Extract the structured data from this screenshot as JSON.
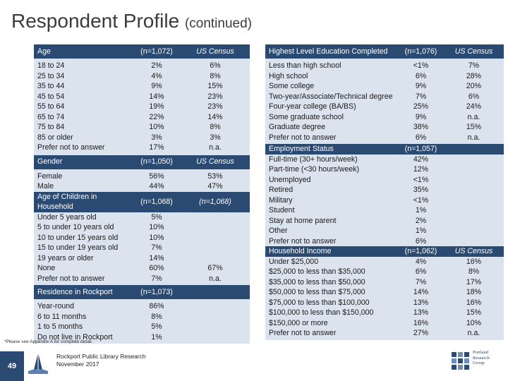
{
  "title": {
    "main": "Respondent Profile",
    "sub": "(continued)"
  },
  "left": {
    "age": {
      "header": "Age",
      "col2": "(n=1,072)",
      "col3": "US Census",
      "rows": [
        [
          "18 to 24",
          "2%",
          "6%"
        ],
        [
          "25 to 34",
          "4%",
          "8%"
        ],
        [
          "35 to 44",
          "9%",
          "15%"
        ],
        [
          "45 to 54",
          "14%",
          "23%"
        ],
        [
          "55 to 64",
          "19%",
          "23%"
        ],
        [
          "65 to 74",
          "22%",
          "14%"
        ],
        [
          "75 to 84",
          "10%",
          "8%"
        ],
        [
          "85 or older",
          "3%",
          "3%"
        ],
        [
          "Prefer not to answer",
          "17%",
          "n.a."
        ]
      ]
    },
    "gender": {
      "header": "Gender",
      "col2": "(n=1,050)",
      "col3": "US Census",
      "rows": [
        [
          "Female",
          "56%",
          "53%"
        ],
        [
          "Male",
          "44%",
          "47%"
        ]
      ]
    },
    "children": {
      "label_1": "Age of Children in",
      "label_2": "Household",
      "col2": "(n=1,068)",
      "col3": "(n=1,068)",
      "rows": [
        [
          "Under 5 years old",
          "5%",
          ""
        ],
        [
          "5 to under 10 years old",
          "10%",
          ""
        ],
        [
          "10 to under 15 years old",
          "10%",
          ""
        ],
        [
          "15 to under 19 years old",
          "7%",
          ""
        ],
        [
          "19 years or older",
          "14%",
          ""
        ],
        [
          "None",
          "60%",
          "67%"
        ],
        [
          "Prefer not to answer",
          "7%",
          "n.a."
        ]
      ]
    },
    "residence": {
      "header": "Residence in Rockport",
      "col2": "(n=1,073)",
      "col3": "",
      "rows": [
        [
          "Year-round",
          "86%",
          ""
        ],
        [
          "6 to 11 months",
          "8%",
          ""
        ],
        [
          "1 to 5 months",
          "5%",
          ""
        ],
        [
          "Do not live in Rockport",
          "1%",
          ""
        ]
      ]
    }
  },
  "right": {
    "education": {
      "header": "Highest Level Education Completed",
      "col2": "(n=1,076)",
      "col3": "US Census",
      "rows": [
        [
          "Less than high school",
          "<1%",
          "7%"
        ],
        [
          "High school",
          "6%",
          "28%"
        ],
        [
          "Some college",
          "9%",
          "20%"
        ],
        [
          "Two-year/Associate/Technical degree",
          "7%",
          "6%"
        ],
        [
          "Four-year college (BA/BS)",
          "25%",
          "24%"
        ],
        [
          "Some graduate school",
          "9%",
          "n.a."
        ],
        [
          "Graduate degree",
          "38%",
          "15%"
        ],
        [
          "Prefer not to answer",
          "6%",
          "n.a."
        ]
      ]
    },
    "employment": {
      "header": "Employment Status",
      "col2": "(n=1,057)",
      "col3": "",
      "rows": [
        [
          "Full-time (30+ hours/week)",
          "42%",
          ""
        ],
        [
          "Part-time (<30 hours/week)",
          "12%",
          ""
        ],
        [
          "Unemployed",
          "<1%",
          ""
        ],
        [
          "Retired",
          "35%",
          ""
        ],
        [
          "Military",
          "<1%",
          ""
        ],
        [
          "Student",
          "1%",
          ""
        ],
        [
          "Stay at home parent",
          "2%",
          ""
        ],
        [
          "Other",
          "1%",
          ""
        ],
        [
          "Prefer not to answer",
          "6%",
          ""
        ]
      ]
    },
    "income": {
      "header": "Household Income",
      "col2": "(n=1,062)",
      "col3": "US Census",
      "rows": [
        [
          "Under $25,000",
          "4%",
          "16%"
        ],
        [
          "$25,000 to less than $35,000",
          "6%",
          "8%"
        ],
        [
          "$35,000 to less than $50,000",
          "7%",
          "17%"
        ],
        [
          "$50,000 to less than $75,000",
          "14%",
          "18%"
        ],
        [
          "$75,000 to less than $100,000",
          "13%",
          "16%"
        ],
        [
          "$100,000 to less than $150,000",
          "13%",
          "15%"
        ],
        [
          "$150,000 or more",
          "16%",
          "10%"
        ],
        [
          "Prefer not to answer",
          "27%",
          "n.a."
        ]
      ]
    }
  },
  "footnote": "*Please see Appendix A for complete detail.",
  "footer": {
    "page_number": "49",
    "report_title": "Rockport Public Library Research",
    "report_date": "November 2017",
    "company_line1": "Portland",
    "company_line2": "Research",
    "company_line3": "Group"
  },
  "colors": {
    "header_bg": "#2a4a72",
    "row_bg": "#dbe3ee"
  }
}
